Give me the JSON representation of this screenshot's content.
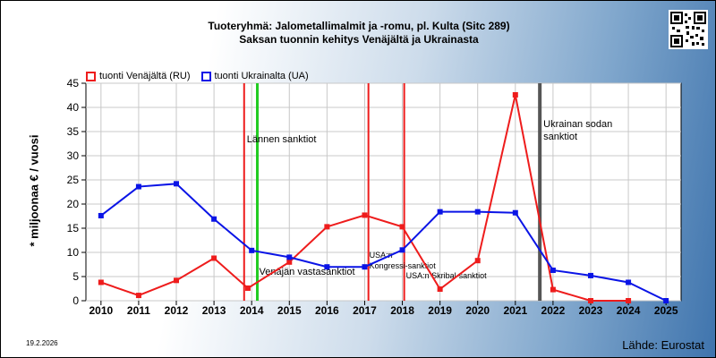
{
  "header": {
    "title_line1": "Tuoteryhmä: Jalometallimalmit ja -romu, pl. Kulta (Sitc 289)",
    "title_line2": "Saksan tuonnin kehitys  Venäjältä ja Ukrainasta"
  },
  "footer": {
    "date": "19.2.2026",
    "source": "Lähde: Eurostat"
  },
  "colors": {
    "ru": "#ee1c1c",
    "ua": "#0a14e6",
    "green_line": "#22cc22",
    "gray_line": "#555555"
  },
  "chart_data": {
    "type": "line",
    "title": "Tuoteryhmä: Jalometallimalmit ja -romu, pl. Kulta (Sitc 289)",
    "subtitle": "Saksan tuonnin kehitys  Venäjältä ja Ukrainasta",
    "ylabel": "* miljoonaa € / vuosi",
    "xlabel": "",
    "ylim": [
      0,
      45
    ],
    "yticks": [
      0,
      5,
      10,
      15,
      20,
      25,
      30,
      35,
      40,
      45
    ],
    "grid": true,
    "legend_position": "top-left",
    "x": [
      "2010",
      "2011",
      "2012",
      "2013",
      "2014",
      "2015",
      "2016",
      "2017",
      "2018",
      "2019",
      "2020",
      "2021",
      "2022",
      "2023",
      "2024",
      "2025"
    ],
    "series": [
      {
        "name": "tuonti Venäjältä (RU)",
        "x": [
          2010,
          2011,
          2012,
          2013,
          2013.9,
          2015,
          2016,
          2017,
          2018,
          2019,
          2020,
          2021,
          2022,
          2023,
          2024
        ],
        "values": [
          3.8,
          1.1,
          4.2,
          8.8,
          2.6,
          8.0,
          15.3,
          17.7,
          15.3,
          2.4,
          8.3,
          42.6,
          2.3,
          0,
          0
        ]
      },
      {
        "name": "tuonti Ukrainalta (UA)",
        "x": [
          2010,
          2011,
          2012,
          2013,
          2014,
          2015,
          2016,
          2017,
          2018,
          2019,
          2020,
          2021,
          2022,
          2023,
          2024,
          2025
        ],
        "values": [
          17.6,
          23.6,
          24.2,
          16.9,
          10.4,
          9.0,
          7.0,
          7.0,
          10.5,
          18.4,
          18.4,
          18.2,
          6.3,
          5.2,
          3.8,
          0
        ]
      }
    ],
    "events": [
      {
        "x": 2013.8,
        "color": "red",
        "label": "Lännen sanktiot"
      },
      {
        "x": 2014.15,
        "color": "green",
        "label": "Venäjän vastasanktiot"
      },
      {
        "x": 2017.1,
        "color": "red",
        "label": "USA:n Kongressi-sanktiot"
      },
      {
        "x": 2018.05,
        "color": "red",
        "label": "USA:n Skribal-sanktiot"
      },
      {
        "x": 2021.65,
        "color": "gray",
        "label": "Ukrainan sodan sanktiot"
      }
    ]
  }
}
